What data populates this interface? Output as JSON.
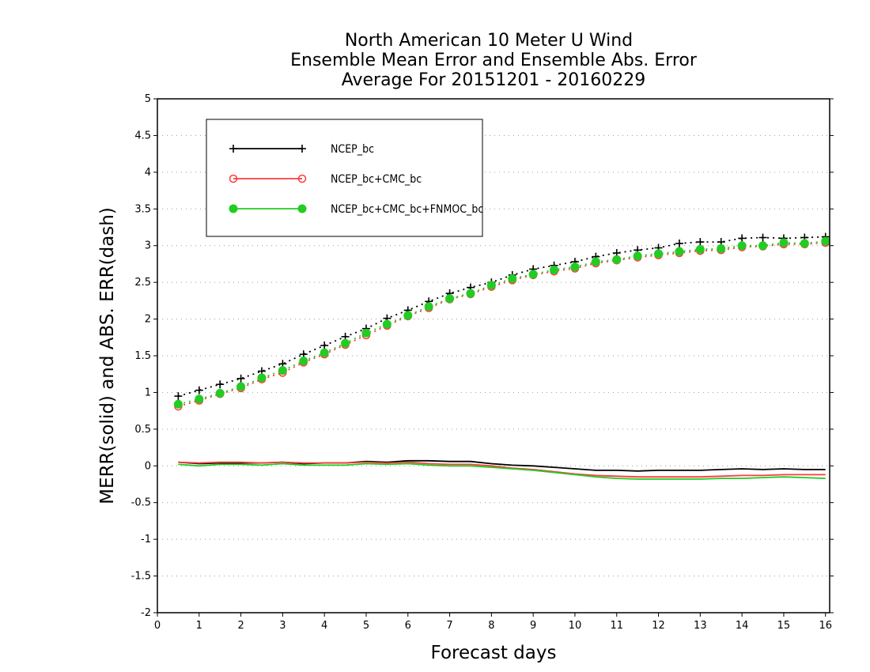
{
  "chart_data": {
    "type": "line",
    "title": [
      "North American 10 Meter U Wind",
      "Ensemble Mean Error and Ensemble Abs. Error",
      "Average For 20151201 - 20160229"
    ],
    "xlabel": "Forecast days",
    "ylabel": "MERR(solid) and ABS. ERR(dash)",
    "xlim": [
      0,
      16.1
    ],
    "ylim": [
      -2,
      5
    ],
    "xticks": [
      0,
      1,
      2,
      3,
      4,
      5,
      6,
      7,
      8,
      9,
      10,
      11,
      12,
      13,
      14,
      15,
      16
    ],
    "yticks": [
      -2,
      -1.5,
      -1,
      -0.5,
      0,
      0.5,
      1,
      1.5,
      2,
      2.5,
      3,
      3.5,
      4,
      4.5,
      5
    ],
    "ytick_labels": [
      "-2",
      "-1.5",
      "-1",
      "-0.5",
      "0",
      "0.5",
      "1",
      "1.5",
      "2",
      "2.5",
      "3",
      "3.5",
      "4",
      "4.5",
      "5"
    ],
    "grid": true,
    "legend_position": "top-left",
    "x": [
      0.5,
      1,
      1.5,
      2,
      2.5,
      3,
      3.5,
      4,
      4.5,
      5,
      5.5,
      6,
      6.5,
      7,
      7.5,
      8,
      8.5,
      9,
      9.5,
      10,
      10.5,
      11,
      11.5,
      12,
      12.5,
      13,
      13.5,
      14,
      14.5,
      15,
      15.5,
      16
    ],
    "series": [
      {
        "name": "NCEP_bc",
        "color": "#000000",
        "marker": "plus",
        "mean_error": [
          0.05,
          0.03,
          0.04,
          0.04,
          0.04,
          0.05,
          0.03,
          0.04,
          0.04,
          0.06,
          0.05,
          0.07,
          0.07,
          0.06,
          0.06,
          0.03,
          0.01,
          0.0,
          -0.02,
          -0.04,
          -0.06,
          -0.06,
          -0.07,
          -0.06,
          -0.06,
          -0.06,
          -0.05,
          -0.04,
          -0.05,
          -0.04,
          -0.05,
          -0.05
        ],
        "abs_error": [
          0.95,
          1.03,
          1.11,
          1.19,
          1.29,
          1.39,
          1.52,
          1.64,
          1.76,
          1.87,
          2.01,
          2.12,
          2.24,
          2.35,
          2.43,
          2.5,
          2.6,
          2.68,
          2.73,
          2.78,
          2.85,
          2.9,
          2.94,
          2.97,
          3.03,
          3.05,
          3.05,
          3.1,
          3.11,
          3.1,
          3.11,
          3.12
        ]
      },
      {
        "name": "NCEP_bc+CMC_bc",
        "color": "#ff3b3b",
        "marker": "open-circle",
        "mean_error": [
          0.05,
          0.04,
          0.05,
          0.05,
          0.04,
          0.05,
          0.04,
          0.04,
          0.04,
          0.05,
          0.04,
          0.05,
          0.03,
          0.02,
          0.02,
          0.0,
          -0.03,
          -0.05,
          -0.08,
          -0.11,
          -0.13,
          -0.14,
          -0.15,
          -0.15,
          -0.15,
          -0.15,
          -0.14,
          -0.13,
          -0.13,
          -0.12,
          -0.12,
          -0.12
        ],
        "abs_error": [
          0.81,
          0.89,
          0.98,
          1.06,
          1.18,
          1.27,
          1.41,
          1.52,
          1.65,
          1.78,
          1.91,
          2.04,
          2.15,
          2.27,
          2.34,
          2.44,
          2.53,
          2.6,
          2.65,
          2.69,
          2.76,
          2.8,
          2.84,
          2.87,
          2.9,
          2.93,
          2.94,
          2.98,
          2.99,
          3.02,
          3.02,
          3.04
        ]
      },
      {
        "name": "NCEP_bc+CMC_bc+FNMOC_bc",
        "color": "#22cc22",
        "marker": "filled-circle",
        "mean_error": [
          0.02,
          0.0,
          0.02,
          0.02,
          0.01,
          0.03,
          0.01,
          0.01,
          0.01,
          0.03,
          0.02,
          0.03,
          0.01,
          0.0,
          0.0,
          -0.02,
          -0.04,
          -0.06,
          -0.09,
          -0.12,
          -0.15,
          -0.17,
          -0.18,
          -0.18,
          -0.18,
          -0.18,
          -0.17,
          -0.17,
          -0.16,
          -0.15,
          -0.16,
          -0.17
        ],
        "abs_error": [
          0.84,
          0.91,
          0.99,
          1.08,
          1.2,
          1.3,
          1.43,
          1.54,
          1.67,
          1.81,
          1.93,
          2.05,
          2.17,
          2.28,
          2.35,
          2.46,
          2.55,
          2.61,
          2.67,
          2.71,
          2.78,
          2.81,
          2.86,
          2.89,
          2.92,
          2.95,
          2.96,
          3.0,
          3.0,
          3.04,
          3.03,
          3.06
        ]
      }
    ]
  }
}
